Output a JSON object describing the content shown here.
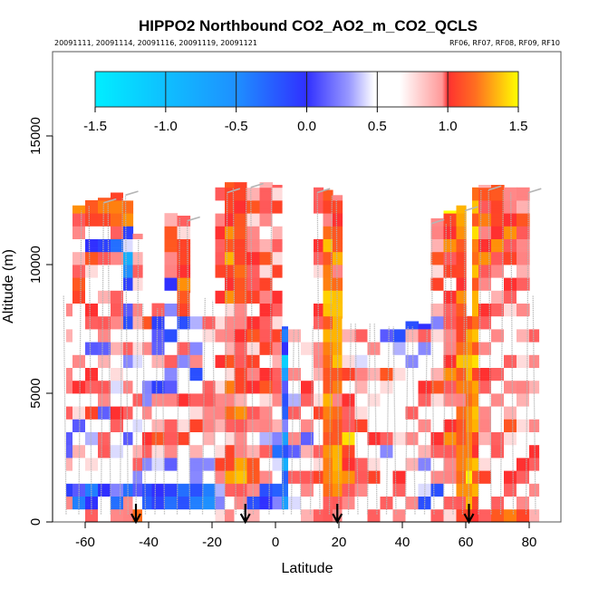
{
  "chart_data": {
    "type": "heatmap",
    "title": "HIPPO2 Northbound CO2_AO2_m_CO2_QCLS",
    "subtitle_left": "20091111, 20091114, 20091116, 20091119, 20091121",
    "subtitle_right": "RF06, RF07, RF08, RF09, RF10",
    "xlabel": "Latitude",
    "ylabel": "Altitude (m)",
    "xlim": [
      -70,
      90
    ],
    "ylim": [
      0,
      18300
    ],
    "xticks": [
      -60,
      -40,
      -20,
      0,
      20,
      40,
      60,
      80
    ],
    "xtick_labels": [
      "-60",
      "-40",
      "-20",
      "0",
      "20",
      "40",
      "60",
      "80"
    ],
    "yticks": [
      0,
      5000,
      10000,
      15000
    ],
    "ytick_labels": [
      "0",
      "5000",
      "10000",
      "15000"
    ],
    "colorbar": {
      "range": [
        -1.5,
        1.5
      ],
      "ticks": [
        -1.5,
        -1.0,
        -0.5,
        0.0,
        0.5,
        1.0,
        1.5
      ],
      "tick_labels": [
        "-1.5",
        "-1.0",
        "-0.5",
        "0.0",
        "0.5",
        "1.0",
        "1.5"
      ],
      "colors": [
        "#00eeff",
        "#1e90ff",
        "#3030ff",
        "#ffffff",
        "#ff3030",
        "#ffa500",
        "#ffff00"
      ],
      "placement": "top-inside"
    },
    "value_encoding": {
      "levels": "ABCDEFGHIJKLM",
      "min": -1.5,
      "step": 0.25,
      "altitude_step_m": 500
    },
    "columns": [
      {
        "lat": [
          -66,
          -64
        ],
        "top": 9000,
        "v": "GHEGHFEGHGIHGFHGHG"
      },
      {
        "lat": [
          -64,
          -60
        ],
        "top": 12300,
        "v": "GDEGFHGEHGIGHGFGHIJHHGHIJIG"
      },
      {
        "lat": [
          -60,
          -56
        ],
        "top": 12500,
        "v": "HEDGHGFHIGHIGEGHIHGHIEGIJIH"
      },
      {
        "lat": [
          -56,
          -52
        ],
        "top": 12600,
        "v": "GFEHGIHGFHIGHFHIGHHGIDGJJJH"
      },
      {
        "lat": [
          -52,
          -48
        ],
        "top": 12800,
        "v": "HDEGHFGHIGFHGHGHIHGHHDHJKIH"
      },
      {
        "lat": [
          -48,
          -45
        ],
        "top": 12900,
        "v": "IHDFGHEGHGIGFHGEEGDCCFEJJGE"
      },
      {
        "lat": [
          -45,
          -42
        ],
        "top": 11200,
        "v": "JGEFHHGFGHGHFHGHIGHHHGHH"
      },
      {
        "lat": [
          -42,
          -39
        ],
        "top": 8700,
        "v": "GDEGFHIGHFEGHHGIGH"
      },
      {
        "lat": [
          -39,
          -35
        ],
        "top": 8500,
        "v": "GDEGFHIHGHEGHFEEH"
      },
      {
        "lat": [
          -35,
          -31
        ],
        "top": 12000,
        "v": "GDDGFHIHGIEFHGEGFGEIHJIHIH"
      },
      {
        "lat": [
          -31,
          -27
        ],
        "top": 11900,
        "v": "GDDGGHIHGIHGFHGEIJJIJIHHJ"
      },
      {
        "lat": [
          -27,
          -23
        ],
        "top": 8900,
        "v": "GDDFEHGIHHGEHFGFGG"
      },
      {
        "lat": [
          -23,
          -19
        ],
        "top": 8800,
        "v": "GCDGFGHIHIHGHGHHGH"
      },
      {
        "lat": [
          -19,
          -16
        ],
        "top": 13000,
        "v": "HEFIIHGHIHHGIHHHGIHIIHIIGIH"
      },
      {
        "lat": [
          -16,
          -13
        ],
        "top": 13200,
        "v": "HGHKJIHHJIJHIHIHHJIJKJJIJIJ"
      },
      {
        "lat": [
          -13,
          -9
        ],
        "top": 13200,
        "v": "HHIKKIHIJHJIIHIIHJIJJIJIIJI"
      },
      {
        "lat": [
          -9,
          -5
        ],
        "top": 13200,
        "v": "HEHJIHHHIGIIIHIIHIIHIIHHIHH"
      },
      {
        "lat": [
          -5,
          -1
        ],
        "top": 13200,
        "v": "GEEHGHFIHHIIHIIHIIIHIHHHIHH"
      },
      {
        "lat": [
          -1,
          2
        ],
        "top": 13100,
        "v": "GEDGFDEHHHIHHIIHHIHIHHHHIHH"
      },
      {
        "lat": [
          2,
          4
        ],
        "top": 7600,
        "v": "GCCDCDCEDEECAEDD"
      },
      {
        "lat": [
          4,
          8
        ],
        "top": 7700,
        "v": "GFGHGFHGHFGHGFHG"
      },
      {
        "lat": [
          8,
          12
        ],
        "top": 7800,
        "v": "HGHIGHFHGHIHGHFG"
      },
      {
        "lat": [
          12,
          15
        ],
        "top": 13000,
        "v": "HGHIHHGHIHGHIHGHIHGHHIHGIH"
      },
      {
        "lat": [
          15,
          18
        ],
        "top": 12900,
        "v": "IHJKJKIJKKJIJKKJKLKJJKJIIJ"
      },
      {
        "lat": [
          18,
          21
        ],
        "top": 12700,
        "v": "HIJKLKJIJIJJKKLKLKJIKJIIJH"
      },
      {
        "lat": [
          21,
          25
        ],
        "top": 7900,
        "v": "HHIJIJLIHIHIHGHG"
      },
      {
        "lat": [
          25,
          29
        ],
        "top": 7900,
        "v": "GHHIHGHIHGHIFGHG"
      },
      {
        "lat": [
          29,
          33
        ],
        "top": 7900,
        "v": "HGHIHGIHGHGHGHGF"
      },
      {
        "lat": [
          33,
          37
        ],
        "top": 7800,
        "v": "GHGHGFHGHGHIGHEG"
      },
      {
        "lat": [
          37,
          41
        ],
        "top": 7800,
        "v": "HGHIHGHFGHGHGFEG"
      },
      {
        "lat": [
          41,
          45
        ],
        "top": 7800,
        "v": "GHGFHGHGHGHGFGHE"
      },
      {
        "lat": [
          45,
          49
        ],
        "top": 7700,
        "v": "GEFGEHGHGHIHGFHE"
      },
      {
        "lat": [
          49,
          53
        ],
        "top": 11800,
        "v": "HGEHGHIHGHIHHGHEHHIHIHIHHG"
      },
      {
        "lat": [
          53,
          57
        ],
        "top": 12100,
        "v": "HHGIHIJIHHIJIIHIHIHIIJIJMH"
      },
      {
        "lat": [
          57,
          60
        ],
        "top": 12300,
        "v": "IIJJKJJIJIJJKJJIJJIJIJJKLI"
      },
      {
        "lat": [
          60,
          62
        ],
        "top": 8600,
        "v": "JKKLKKJKJJKKLJKJ"
      },
      {
        "lat": [
          62,
          64
        ],
        "top": 13100,
        "v": "IJKJKIJKLJKJLJKJLKJKJKLJKJ"
      },
      {
        "lat": [
          64,
          68
        ],
        "top": 13100,
        "v": "HGHIHGHIHGHIHHGHIHHIJIIJIIH"
      },
      {
        "lat": [
          68,
          72
        ],
        "top": 13100,
        "v": "JHGHGIHGHHGHGHHGHHGHIJIJIJI"
      },
      {
        "lat": [
          72,
          76
        ],
        "top": 13000,
        "v": "JGHIHGHIHGHGHGHGHHIHIIJIIHI"
      },
      {
        "lat": [
          76,
          80
        ],
        "top": 13000,
        "v": "JHGHIHGHGHIGHGHGHGHHIHIIHIH"
      },
      {
        "lat": [
          80,
          83
        ],
        "top": 9000,
        "v": "HGHGHIGHGFHGHGHG"
      }
    ],
    "flight_track_lats": [
      -66,
      -62,
      -58,
      -55,
      -52,
      -49,
      -46.5,
      -44,
      -41,
      -38,
      -35,
      -31,
      -27,
      -23,
      -19,
      -16,
      -12.5,
      -10,
      -7,
      -2,
      2.5,
      5,
      8,
      11,
      14,
      17,
      20,
      23,
      26,
      29,
      32,
      35,
      38,
      41,
      44,
      47,
      50,
      53,
      56,
      59,
      61,
      64,
      68,
      71,
      75,
      79,
      82
    ],
    "profile_markers_lat": [
      -44,
      -9.5,
      19.5,
      61
    ]
  }
}
